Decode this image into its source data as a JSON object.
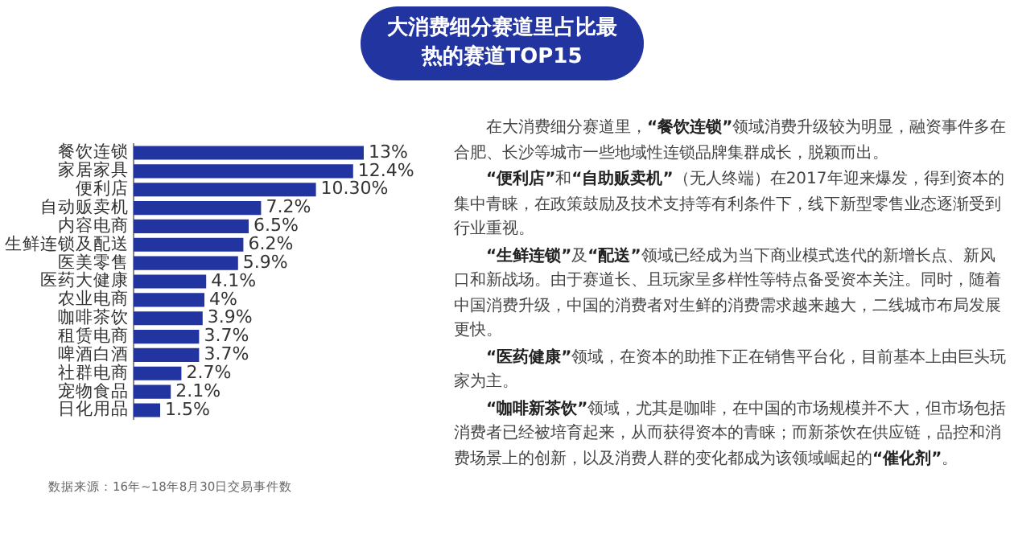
{
  "chart_data": {
    "type": "bar",
    "orientation": "horizontal",
    "title": "大消费细分赛道里占比最热的赛道TOP15",
    "categories": [
      "餐饮连锁",
      "家居家具",
      "便利店",
      "自动贩卖机",
      "内容电商",
      "生鲜连锁及配送",
      "医美零售",
      "医药大健康",
      "农业电商",
      "咖啡茶饮",
      "租赁电商",
      "啤酒白酒",
      "社群电商",
      "宠物食品",
      "日化用品"
    ],
    "values": [
      13,
      12.4,
      10.3,
      7.2,
      6.5,
      6.2,
      5.9,
      4.1,
      4,
      3.9,
      3.7,
      3.7,
      2.7,
      2.1,
      1.5
    ],
    "value_labels": [
      "13%",
      "12.4%",
      "10.30%",
      "7.2%",
      "6.5%",
      "6.2%",
      "5.9%",
      "4.1%",
      "4%",
      "3.9%",
      "3.7%",
      "3.7%",
      "2.7%",
      "2.1%",
      "1.5%"
    ],
    "color": "#2234a0",
    "grid": false,
    "legend": false,
    "tick_labels": "y",
    "annotations": [
      "数据来源：16年~18年8月30日交易事件数",
      "在大消费细分赛道里，“餐饮连锁”领域消费升级较为明显，融资事件多在合肥、长沙等城市一些地域性连锁品牌集群成长，脱颖而出。",
      "“便利店”和“自助贩卖机”（无人终端）在2017年迎来爆发，得到资本的集中青睐，在政策鼓励及技术支持等有利条件下，线下新型零售业态逐渐受到行业重视。",
      "“生鲜连锁”及“配送”领域已经成为当下商业模式迭代的新增长点、新风口和新战场。由于赛道长、且玩家呈多样性等特点备受资本关注。同时，随着中国消费升级，中国的消费者对生鲜的消费需求越来越大，二线城市布局发展更快。",
      "“医药健康”领域，在资本的助推下正在销售平台化，目前基本上由巨头玩家为主。",
      "“咖啡新茶饮”领域，尤其是咖啡，在中国的市场规模并不大，但市场包括消费者已经被培育起来，从而获得资本的青睐；而新茶饮在供应链，品控和消费场景上的创新，以及消费人群的变化都成为该领域崛起的“催化剂”。"
    ]
  }
}
